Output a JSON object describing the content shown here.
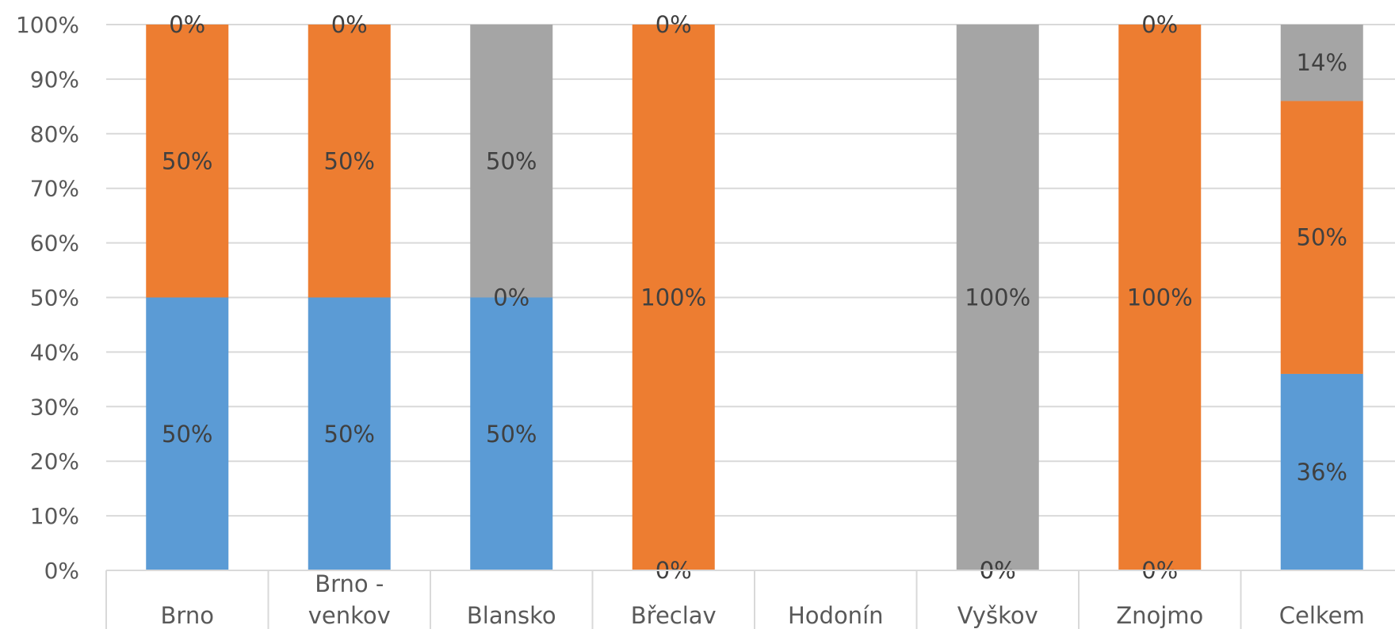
{
  "chart_data": {
    "type": "bar",
    "stacked": true,
    "categories": [
      "Brno",
      "Brno - venkov",
      "Blansko",
      "Břeclav",
      "Hodonín",
      "Vyškov",
      "Znojmo",
      "Celkem"
    ],
    "category_lines": [
      [
        "Brno"
      ],
      [
        "Brno -",
        "venkov"
      ],
      [
        "Blansko"
      ],
      [
        "Břeclav"
      ],
      [
        "Hodonín"
      ],
      [
        "Vyškov"
      ],
      [
        "Znojmo"
      ],
      [
        "Celkem"
      ]
    ],
    "series": [
      {
        "color": "#5b9bd5",
        "values": [
          50,
          50,
          50,
          0,
          null,
          0,
          0,
          36
        ],
        "labels": [
          "50%",
          "50%",
          "50%",
          "0%",
          null,
          "0%",
          "0%",
          "36%"
        ]
      },
      {
        "color": "#ed7d31",
        "values": [
          50,
          50,
          0,
          100,
          null,
          0,
          100,
          50
        ],
        "labels": [
          "50%",
          "50%",
          "0%",
          "100%",
          null,
          "0%",
          "100%",
          "50%"
        ]
      },
      {
        "color": "#a5a5a5",
        "values": [
          0,
          0,
          50,
          0,
          null,
          100,
          0,
          14
        ],
        "labels": [
          "0%",
          "0%",
          "50%",
          "0%",
          null,
          "100%",
          "0%",
          "14%"
        ]
      }
    ],
    "ylim": [
      0,
      100
    ],
    "yticks": [
      "0%",
      "10%",
      "20%",
      "30%",
      "40%",
      "50%",
      "60%",
      "70%",
      "80%",
      "90%",
      "100%"
    ],
    "grid": true,
    "legend": "none",
    "colors": {
      "gridline": "#d9d9d9",
      "label_text": "#404040",
      "tick_text": "#595959"
    }
  }
}
